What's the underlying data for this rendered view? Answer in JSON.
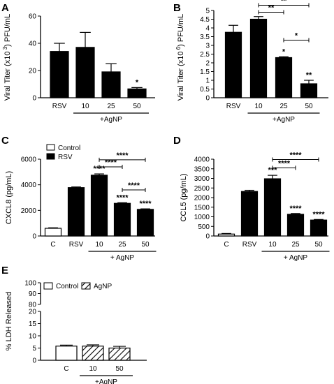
{
  "panels": [
    {
      "id": "A",
      "ylabel_parts": [
        "Viral Titer (x10",
        "3",
        ") PFU/mL"
      ],
      "group_label": "+AgNP",
      "chart_data": {
        "type": "bar",
        "categories": [
          "RSV",
          "10",
          "25",
          "50"
        ],
        "values": [
          34,
          37,
          19,
          6.5
        ],
        "errors": [
          6,
          11,
          6,
          1
        ],
        "colors": [
          "#000000",
          "#000000",
          "#000000",
          "#000000"
        ],
        "ylim": [
          0,
          60
        ],
        "yticks": [
          0,
          20,
          40,
          60
        ],
        "stars": [
          {
            "bar": 3,
            "text": "*"
          }
        ],
        "brackets": []
      }
    },
    {
      "id": "B",
      "ylabel_parts": [
        "Viral Titer (x10",
        "6",
        ") PFU/mL"
      ],
      "group_label": "+AgNP",
      "chart_data": {
        "type": "bar",
        "categories": [
          "RSV",
          "10",
          "25",
          "50"
        ],
        "values": [
          3.75,
          4.5,
          2.3,
          0.8
        ],
        "errors": [
          0.4,
          0.15,
          0.05,
          0.2
        ],
        "colors": [
          "#000000",
          "#000000",
          "#000000",
          "#000000"
        ],
        "ylim": [
          0,
          5
        ],
        "yticks": [
          0,
          0.5,
          1,
          1.5,
          2,
          2.5,
          3,
          3.5,
          4,
          4.5,
          5
        ],
        "stars": [
          {
            "bar": 2,
            "text": "*"
          },
          {
            "bar": 3,
            "text": "**"
          }
        ],
        "brackets": [
          {
            "from": 1,
            "to": 3,
            "y": 5.3,
            "text": "**"
          },
          {
            "from": 1,
            "to": 2,
            "y": 4.9,
            "text": "**"
          },
          {
            "from": 2,
            "to": 3,
            "y": 3.3,
            "text": "*"
          }
        ]
      }
    },
    {
      "id": "C",
      "ylabel_parts": [
        "CXCL8 (pg/mL)"
      ],
      "group_label": "+ AgNP",
      "legend": [
        "Control",
        "RSV"
      ],
      "chart_data": {
        "type": "bar",
        "categories": [
          "C",
          "RSV",
          "10",
          "25",
          "50"
        ],
        "values": [
          600,
          3780,
          4750,
          2550,
          2080
        ],
        "errors": [
          40,
          50,
          100,
          50,
          40
        ],
        "colors": [
          "#ffffff",
          "#000000",
          "#000000",
          "#000000",
          "#000000"
        ],
        "ylim": [
          0,
          6000
        ],
        "yticks": [
          0,
          2000,
          4000,
          6000
        ],
        "stars": [
          {
            "bar": 2,
            "text": "****"
          },
          {
            "bar": 3,
            "text": "****"
          },
          {
            "bar": 4,
            "text": "****"
          }
        ],
        "brackets": [
          {
            "from": 2,
            "to": 4,
            "y": 5950,
            "text": "****"
          },
          {
            "from": 2,
            "to": 3,
            "y": 5400,
            "text": "****"
          },
          {
            "from": 3,
            "to": 4,
            "y": 3600,
            "text": "****"
          }
        ]
      }
    },
    {
      "id": "D",
      "ylabel_parts": [
        "CCL5 (pg/mL)"
      ],
      "group_label": "+ AgNP",
      "chart_data": {
        "type": "bar",
        "categories": [
          "C",
          "RSV",
          "10",
          "25",
          "50"
        ],
        "values": [
          100,
          2320,
          2980,
          1130,
          830
        ],
        "errors": [
          30,
          60,
          180,
          40,
          30
        ],
        "colors": [
          "#ffffff",
          "#000000",
          "#000000",
          "#000000",
          "#000000"
        ],
        "ylim": [
          0,
          4000
        ],
        "yticks": [
          0,
          500,
          1000,
          1500,
          2000,
          2500,
          3000,
          3500,
          4000
        ],
        "stars": [
          {
            "bar": 2,
            "text": "***"
          },
          {
            "bar": 3,
            "text": "****"
          },
          {
            "bar": 4,
            "text": "****"
          }
        ],
        "brackets": [
          {
            "from": 2,
            "to": 4,
            "y": 3980,
            "text": "****"
          },
          {
            "from": 2,
            "to": 3,
            "y": 3550,
            "text": "****"
          }
        ]
      }
    },
    {
      "id": "E",
      "ylabel_parts": [
        "% LDH Released"
      ],
      "group_label": "+AgNP",
      "legend": [
        "Control",
        "AgNP"
      ],
      "chart_data": {
        "type": "bar",
        "categories": [
          "C",
          "10",
          "50"
        ],
        "values": [
          5.8,
          5.8,
          5.0
        ],
        "errors": [
          0.4,
          0.5,
          0.7
        ],
        "colors": [
          "#ffffff",
          "hatch",
          "hatch"
        ],
        "ylim": [
          0,
          100
        ],
        "axis_break": [
          20,
          80
        ],
        "yticks": [
          0,
          5,
          10,
          15,
          20,
          80,
          90,
          100
        ],
        "stars": [],
        "brackets": []
      }
    }
  ]
}
